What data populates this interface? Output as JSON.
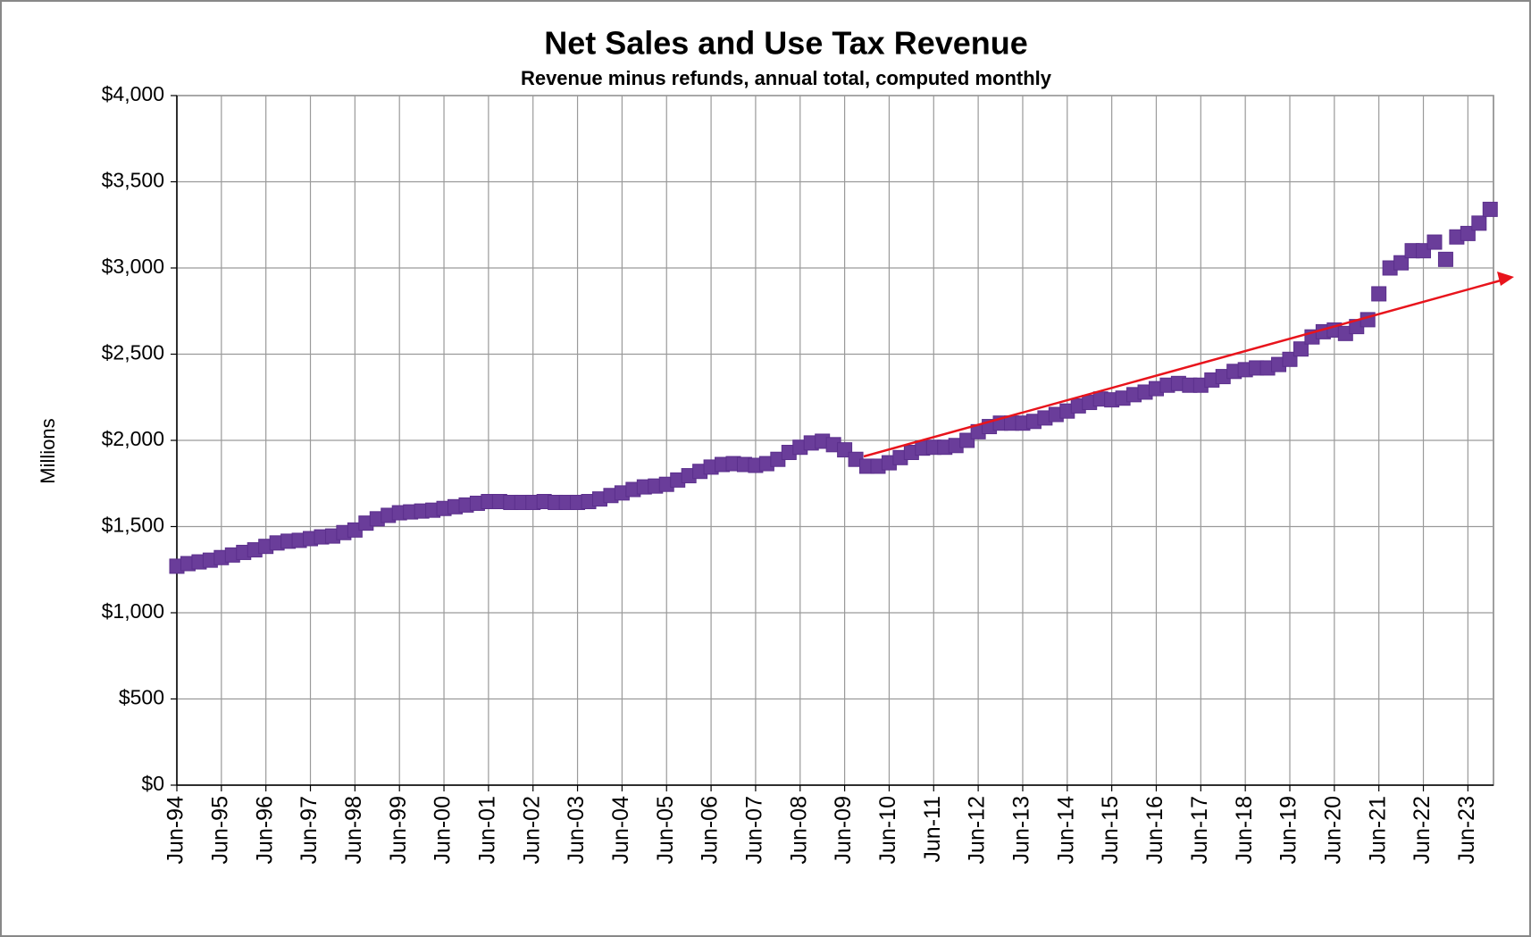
{
  "chart_data": {
    "type": "scatter",
    "title": "Net Sales and Use Tax Revenue",
    "subtitle": "Revenue minus refunds, annual total, computed monthly",
    "y_label": "Millions",
    "color": "#6a3d9a",
    "grid": true,
    "ylim": [
      0,
      4000
    ],
    "yticks": [
      {
        "value": 0,
        "label": "$0"
      },
      {
        "value": 500,
        "label": "$500"
      },
      {
        "value": 1000,
        "label": "$1,000"
      },
      {
        "value": 1500,
        "label": "$1,500"
      },
      {
        "value": 2000,
        "label": "$2,000"
      },
      {
        "value": 2500,
        "label": "$2,500"
      },
      {
        "value": 3000,
        "label": "$3,000"
      },
      {
        "value": 3500,
        "label": "$3,500"
      },
      {
        "value": 4000,
        "label": "$4,000"
      }
    ],
    "categories": [
      "Jun-94",
      null,
      null,
      null,
      "Jun-95",
      null,
      null,
      null,
      "Jun-96",
      null,
      null,
      null,
      "Jun-97",
      null,
      null,
      null,
      "Jun-98",
      null,
      null,
      null,
      "Jun-99",
      null,
      null,
      null,
      "Jun-00",
      null,
      null,
      null,
      "Jun-01",
      null,
      null,
      null,
      "Jun-02",
      null,
      null,
      null,
      "Jun-03",
      null,
      null,
      null,
      "Jun-04",
      null,
      null,
      null,
      "Jun-05",
      null,
      null,
      null,
      "Jun-06",
      null,
      null,
      null,
      "Jun-07",
      null,
      null,
      null,
      "Jun-08",
      null,
      null,
      null,
      "Jun-09",
      null,
      null,
      null,
      "Jun-10",
      null,
      null,
      null,
      "Jun-11",
      null,
      null,
      null,
      "Jun-12",
      null,
      null,
      null,
      "Jun-13",
      null,
      null,
      null,
      "Jun-14",
      null,
      null,
      null,
      "Jun-15",
      null,
      null,
      null,
      "Jun-16",
      null,
      null,
      null,
      "Jun-17",
      null,
      null,
      null,
      "Jun-18",
      null,
      null,
      null,
      "Jun-19",
      null,
      null,
      null,
      "Jun-20",
      null,
      null,
      null,
      "Jun-21",
      null,
      null,
      null,
      "Jun-22",
      null,
      null,
      null,
      "Jun-23",
      null,
      null
    ],
    "values": [
      1270,
      1285,
      1295,
      1305,
      1320,
      1335,
      1350,
      1365,
      1385,
      1405,
      1415,
      1420,
      1430,
      1440,
      1445,
      1465,
      1480,
      1520,
      1545,
      1565,
      1580,
      1585,
      1590,
      1595,
      1605,
      1615,
      1625,
      1635,
      1645,
      1645,
      1640,
      1640,
      1640,
      1645,
      1640,
      1640,
      1640,
      1645,
      1660,
      1680,
      1695,
      1715,
      1730,
      1735,
      1745,
      1770,
      1795,
      1820,
      1845,
      1860,
      1865,
      1860,
      1855,
      1865,
      1890,
      1930,
      1960,
      1985,
      1995,
      1975,
      1945,
      1890,
      1850,
      1850,
      1870,
      1900,
      1930,
      1955,
      1960,
      1960,
      1970,
      2000,
      2050,
      2080,
      2100,
      2100,
      2100,
      2110,
      2130,
      2150,
      2170,
      2200,
      2220,
      2240,
      2235,
      2245,
      2265,
      2280,
      2300,
      2320,
      2330,
      2320,
      2320,
      2350,
      2370,
      2400,
      2410,
      2420,
      2420,
      2440,
      2470,
      2530,
      2600,
      2630,
      2640,
      2620,
      2660,
      2700,
      2850,
      3000,
      3030,
      3100,
      3100,
      3150,
      3050,
      3180,
      3200,
      3260,
      3340
    ]
  }
}
